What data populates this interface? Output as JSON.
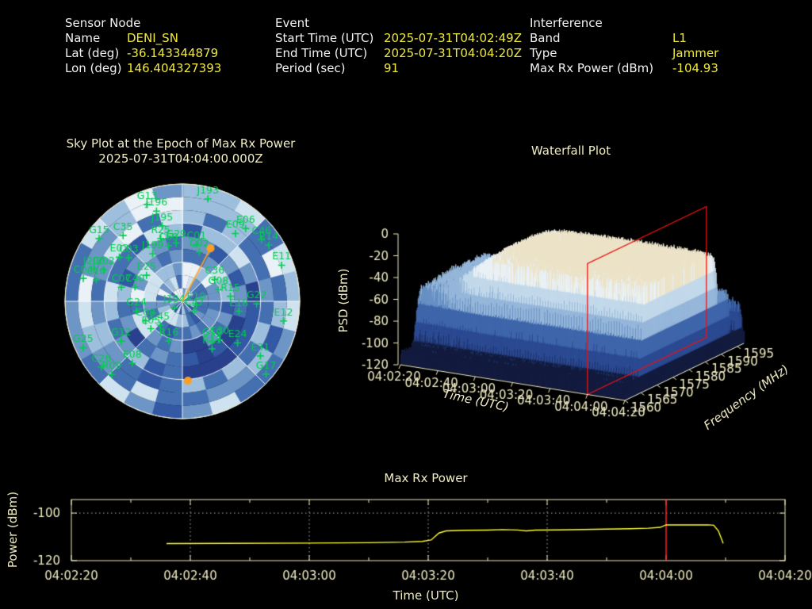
{
  "colors": {
    "background": "#000000",
    "label_text": "#f2f2f2",
    "value_text": "#efe93c",
    "axis_text": "#f0ecc4",
    "axis_line": "#efeabf",
    "satellite_green": "#00cd50",
    "grid_white": "#ffffff",
    "orange_marker": "#ff9f1f",
    "series_yellow": "#ffff33",
    "epoch_red": "#ff2222",
    "waterfall_red": "#ee1111"
  },
  "header": {
    "sensor": {
      "title": "Sensor Node",
      "rows": [
        {
          "label": "Name",
          "value": "DENI_SN"
        },
        {
          "label": "Lat (deg)",
          "value": "-36.143344879"
        },
        {
          "label": "Lon (deg)",
          "value": "146.404327393"
        }
      ]
    },
    "event": {
      "title": "Event",
      "rows": [
        {
          "label": "Start Time (UTC)",
          "value": "2025-07-31T04:02:49Z"
        },
        {
          "label": "End Time (UTC)",
          "value": "2025-07-31T04:04:20Z"
        },
        {
          "label": "Period (sec)",
          "value": "91"
        }
      ]
    },
    "interference": {
      "title": "Interference",
      "rows": [
        {
          "label": "Band",
          "value": "L1"
        },
        {
          "label": "Type",
          "value": "Jammer"
        },
        {
          "label": "Max Rx Power (dBm)",
          "value": "-104.93"
        }
      ]
    }
  },
  "chart_data": [
    {
      "type": "heatmap",
      "name": "sky-plot",
      "projection": "polar",
      "title": "Sky Plot at the Epoch of Max Rx Power",
      "subtitle": "2025-07-31T04:04:00.000Z",
      "elevation_rings_deg": [
        0,
        30,
        60
      ],
      "azimuth_spokes_deg": [
        0,
        45,
        90,
        135,
        180,
        225,
        270,
        315
      ],
      "satellites": [
        {
          "id": "G13",
          "az": 340,
          "el": 11
        },
        {
          "id": "J196",
          "az": 344,
          "el": 18
        },
        {
          "id": "J195",
          "az": 345,
          "el": 30
        },
        {
          "id": "R25",
          "az": 341,
          "el": 39
        },
        {
          "id": "C60",
          "az": 346,
          "el": 46
        },
        {
          "id": "G15",
          "az": 307,
          "el": 10
        },
        {
          "id": "C35",
          "az": 318,
          "el": 22
        },
        {
          "id": "J199",
          "az": 328,
          "el": 47
        },
        {
          "id": "E03",
          "az": 305,
          "el": 31
        },
        {
          "id": "C03",
          "az": 309,
          "el": 37
        },
        {
          "id": "J200",
          "az": 290,
          "el": 18
        },
        {
          "id": "J202",
          "az": 292,
          "el": 25
        },
        {
          "id": "C04",
          "az": 283,
          "el": 12
        },
        {
          "id": "C10",
          "az": 284,
          "el": 22
        },
        {
          "id": "C07",
          "az": 283,
          "el": 42
        },
        {
          "id": "C40",
          "az": 287,
          "el": 52
        },
        {
          "id": "E25",
          "az": 306,
          "el": 56
        },
        {
          "id": "G29",
          "az": 354,
          "el": 45
        },
        {
          "id": "C01",
          "az": 14,
          "el": 45
        },
        {
          "id": "C02",
          "az": 19,
          "el": 50
        },
        {
          "id": "J193",
          "az": 14,
          "el": 9
        },
        {
          "id": "E09",
          "az": 38,
          "el": 24
        },
        {
          "id": "E06",
          "az": 41,
          "el": 16
        },
        {
          "id": "C46",
          "az": 52,
          "el": 13
        },
        {
          "id": "R14",
          "az": 57,
          "el": 11
        },
        {
          "id": "E11",
          "az": 70,
          "el": 9
        },
        {
          "id": "C36",
          "az": 56,
          "el": 60
        },
        {
          "id": "G08",
          "az": 72,
          "el": 61
        },
        {
          "id": "R15",
          "az": 84,
          "el": 53
        },
        {
          "id": "J194",
          "az": 231,
          "el": 82
        },
        {
          "id": "C47",
          "az": 129,
          "el": 78
        },
        {
          "id": "E10",
          "az": 105,
          "el": 79
        },
        {
          "id": "E18",
          "az": 100,
          "el": 46
        },
        {
          "id": "G22",
          "az": 92,
          "el": 33
        },
        {
          "id": "E12",
          "az": 101,
          "el": 11
        },
        {
          "id": "G19",
          "az": 143,
          "el": 52
        },
        {
          "id": "C30",
          "az": 136,
          "el": 49
        },
        {
          "id": "R17",
          "az": 148,
          "el": 47
        },
        {
          "id": "E24",
          "az": 127,
          "el": 37
        },
        {
          "id": "E31",
          "az": 125,
          "el": 17
        },
        {
          "id": "G17",
          "az": 131,
          "el": 5
        },
        {
          "id": "G25",
          "az": 245,
          "el": 6
        },
        {
          "id": "G12",
          "az": 237,
          "el": 34
        },
        {
          "id": "E08",
          "az": 219,
          "el": 29
        },
        {
          "id": "R09",
          "az": 224,
          "el": 12
        },
        {
          "id": "C26",
          "az": 231,
          "el": 10
        },
        {
          "id": "R16",
          "az": 199,
          "el": 58
        },
        {
          "id": "G24",
          "az": 258,
          "el": 54
        },
        {
          "id": "C08",
          "az": 242,
          "el": 58
        },
        {
          "id": "E05",
          "az": 229,
          "el": 58
        },
        {
          "id": "C45",
          "az": 223,
          "el": 65
        }
      ],
      "interference_bearing": {
        "az": 28,
        "el": 44
      },
      "orange_markers": [
        {
          "az": 28,
          "el": 44
        },
        {
          "az": 176,
          "el": 29
        }
      ]
    },
    {
      "type": "heatmap",
      "name": "waterfall",
      "subtype": "3d-surface-waterfall",
      "title": "Waterfall Plot",
      "xlabel": "Time (UTC)",
      "ylabel": "Frequency (MHz)",
      "zlabel": "PSD (dBm)",
      "x_ticks": [
        "04:02:20",
        "04:02:40",
        "04:03:00",
        "04:03:20",
        "04:03:40",
        "04:04:00",
        "04:04:20"
      ],
      "y_ticks": [
        1560,
        1565,
        1570,
        1575,
        1580,
        1585,
        1590,
        1595
      ],
      "z_ticks": [
        0,
        -20,
        -40,
        -60,
        -80,
        -100,
        -120
      ],
      "y_range_mhz": [
        1560,
        1597
      ],
      "z_range_dbm": [
        -120,
        0
      ],
      "signal": {
        "band_mhz": [
          1565,
          1589
        ],
        "plateau_psd_dbm": -28,
        "shoulder_mhz": [
          1589,
          1592
        ],
        "shoulder_psd_dbm": -64,
        "noise_floor_dbm": -107,
        "ramp_up_sec": [
          8,
          38
        ]
      },
      "epoch_slice": {
        "time": "04:04:00",
        "time_frac": 0.8333
      }
    },
    {
      "type": "line",
      "name": "max-rx-power",
      "title": "Max Rx Power",
      "xlabel": "Time (UTC)",
      "ylabel": "Power (dBm)",
      "x_ticks": [
        "04:02:20",
        "04:02:40",
        "04:03:00",
        "04:03:20",
        "04:03:40",
        "04:04:00",
        "04:04:20"
      ],
      "x_tick_interval_sec": 20,
      "x_minor_interval_sec": 10,
      "x_range_sec": [
        0,
        120
      ],
      "y_ticks": [
        -100,
        -120
      ],
      "ylim": [
        -120,
        -94.3
      ],
      "gridline_y_dbm": -100,
      "epoch_line": {
        "time": "04:04:00",
        "sec": 100
      },
      "series": {
        "name": "Max Rx Power (dBm)",
        "points": [
          [
            16,
            -112.8
          ],
          [
            26,
            -112.75
          ],
          [
            40,
            -112.6
          ],
          [
            50,
            -112.45
          ],
          [
            56,
            -112.2
          ],
          [
            59,
            -111.9
          ],
          [
            60.5,
            -111.3
          ],
          [
            61.8,
            -108.4
          ],
          [
            63,
            -107.5
          ],
          [
            66,
            -107.25
          ],
          [
            70,
            -107.15
          ],
          [
            72.5,
            -106.95
          ],
          [
            75,
            -107.1
          ],
          [
            76.5,
            -107.5
          ],
          [
            78,
            -107.15
          ],
          [
            82,
            -107.05
          ],
          [
            86,
            -106.9
          ],
          [
            90,
            -106.75
          ],
          [
            94,
            -106.55
          ],
          [
            97,
            -106.35
          ],
          [
            99,
            -106.0
          ],
          [
            100,
            -104.93
          ],
          [
            101,
            -105.0
          ],
          [
            104,
            -104.98
          ],
          [
            107,
            -104.95
          ],
          [
            108,
            -105.1
          ],
          [
            108.8,
            -107.5
          ],
          [
            109.6,
            -112.7
          ]
        ]
      }
    }
  ]
}
